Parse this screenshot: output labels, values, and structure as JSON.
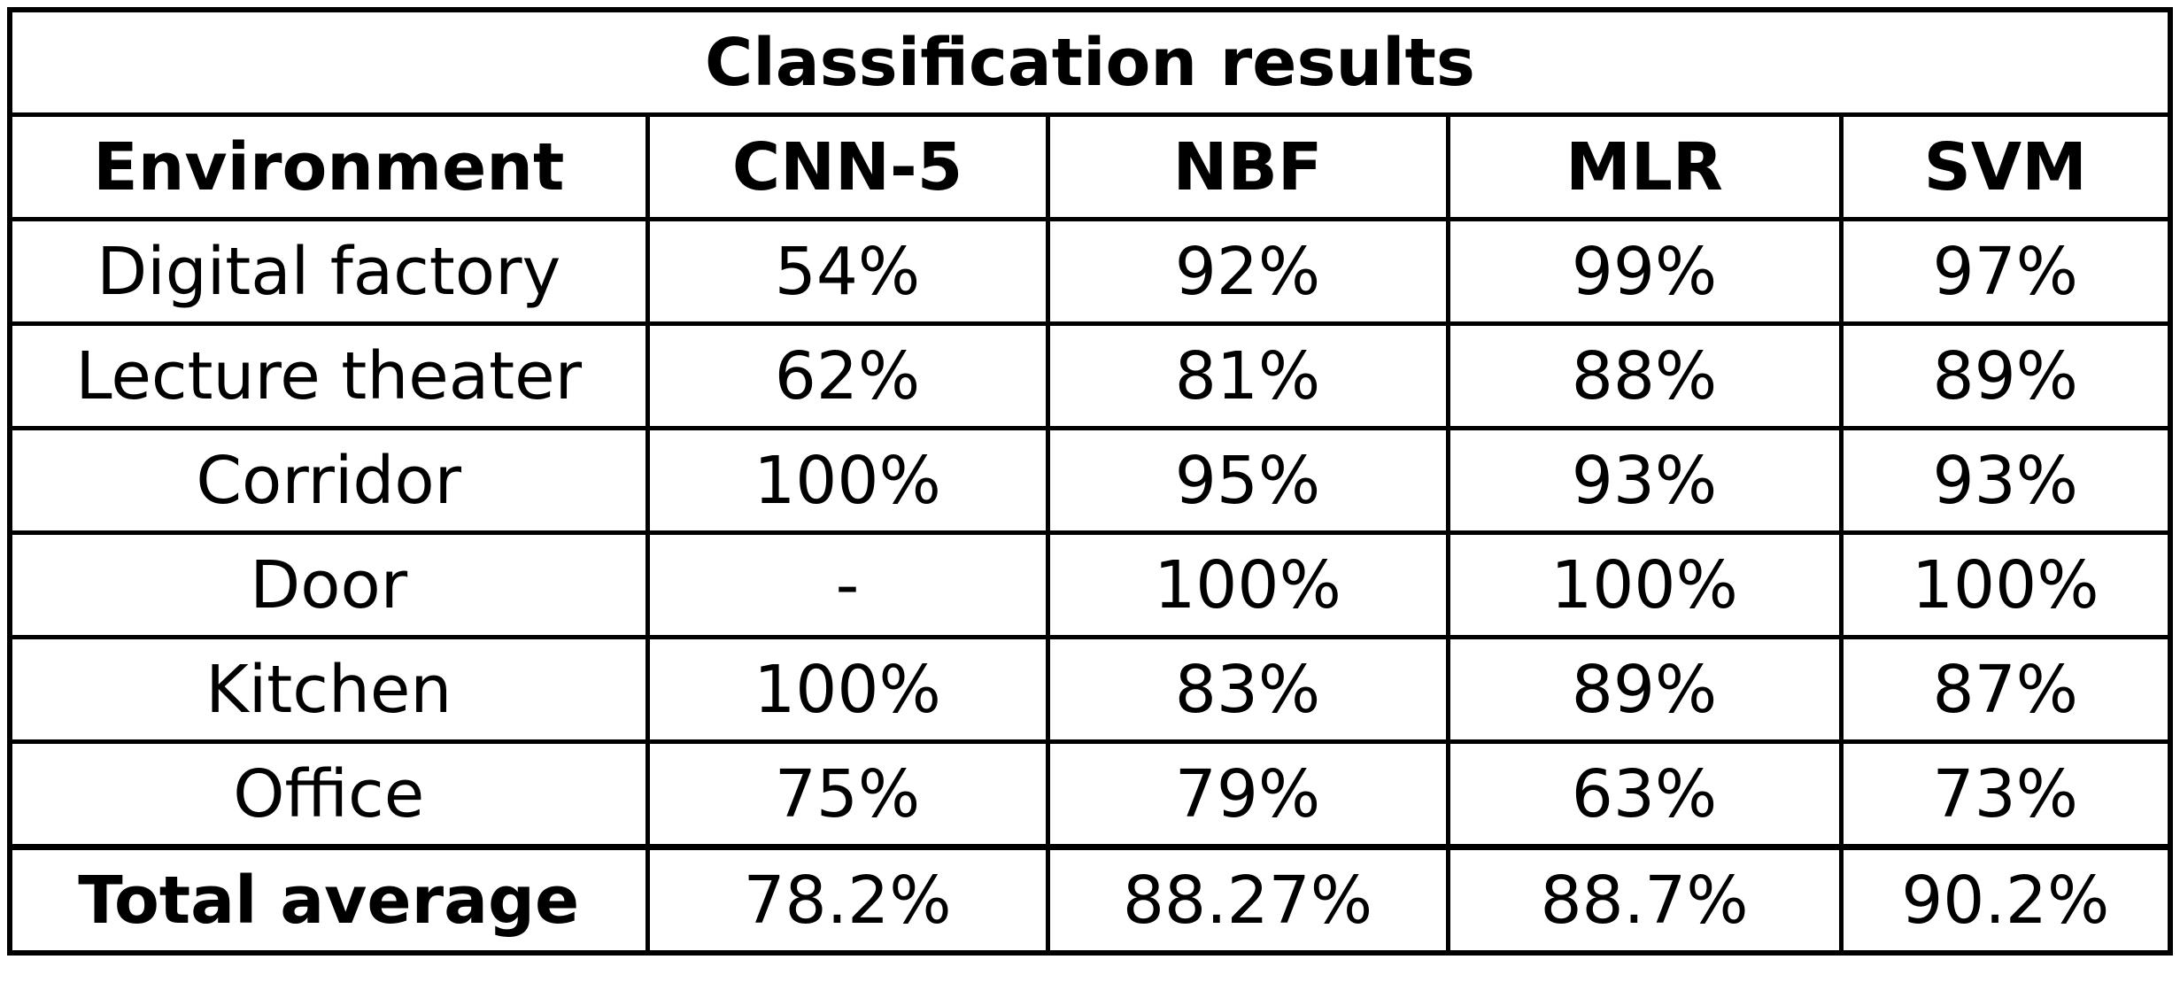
{
  "table": {
    "caption": "Classification results",
    "columns": [
      "Environment",
      "CNN-5",
      "NBF",
      "MLR",
      "SVM"
    ],
    "rows": [
      {
        "environment": "Digital factory",
        "values": [
          "54%",
          "92%",
          "99%",
          "97%"
        ]
      },
      {
        "environment": "Lecture theater",
        "values": [
          "62%",
          "81%",
          "88%",
          "89%"
        ]
      },
      {
        "environment": "Corridor",
        "values": [
          "100%",
          "95%",
          "93%",
          "93%"
        ]
      },
      {
        "environment": "Door",
        "values": [
          "-",
          "100%",
          "100%",
          "100%"
        ]
      },
      {
        "environment": "Kitchen",
        "values": [
          "100%",
          "83%",
          "89%",
          "87%"
        ]
      },
      {
        "environment": "Office",
        "values": [
          "75%",
          "79%",
          "63%",
          "73%"
        ]
      }
    ],
    "total": {
      "label": "Total average",
      "values": [
        "78.2%",
        "88.27%",
        "88.7%",
        "90.2%"
      ]
    }
  }
}
